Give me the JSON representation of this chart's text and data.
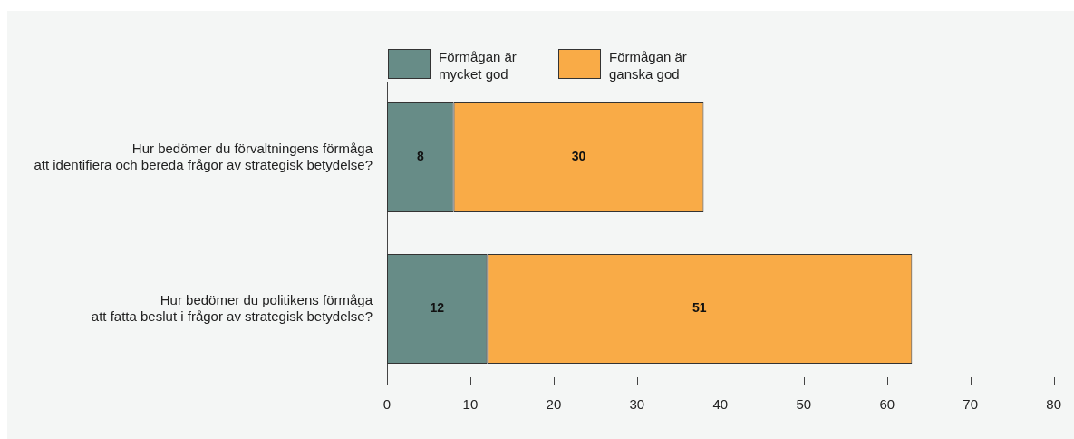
{
  "chart_data": {
    "type": "bar",
    "orientation": "horizontal",
    "stacked": true,
    "categories": [
      "Hur bedömer du förvaltningens förmåga\natt identifiera och bereda frågor av strategisk betydelse?",
      "Hur bedömer du politikens förmåga\natt fatta beslut i frågor av strategisk betydelse?"
    ],
    "series": [
      {
        "name": "Förmågan är mycket god",
        "color": "#678c87",
        "values": [
          8,
          12
        ]
      },
      {
        "name": "Förmågan är ganska god",
        "color": "#f9ab47",
        "values": [
          30,
          51
        ]
      }
    ],
    "data_labels": true,
    "xlim": [
      0,
      80
    ],
    "xticks": [
      0,
      10,
      20,
      30,
      40,
      50,
      60,
      70,
      80
    ],
    "legend": "top left"
  }
}
